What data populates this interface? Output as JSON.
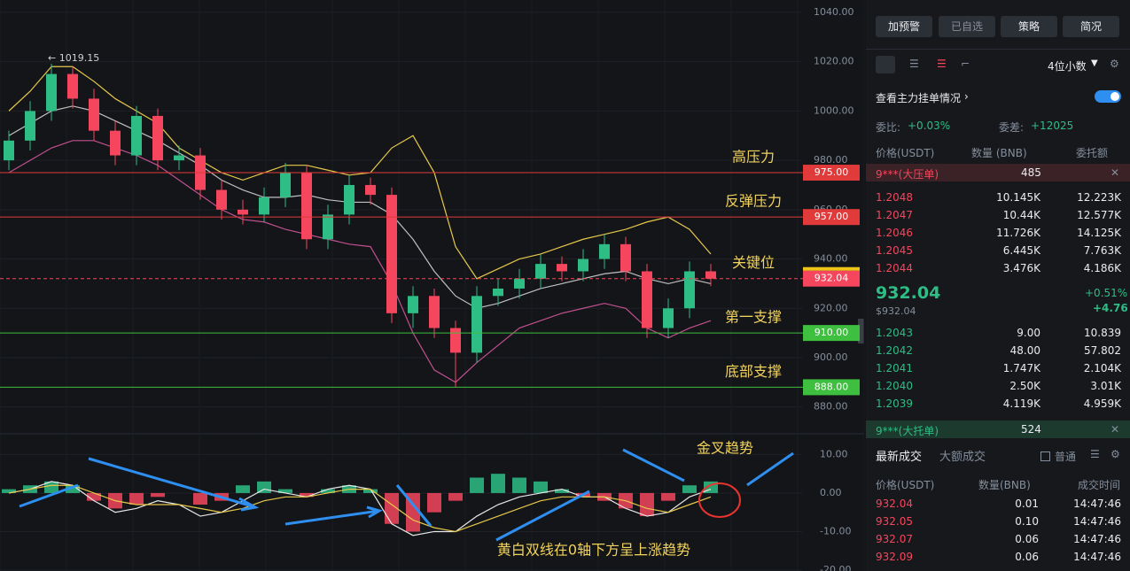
{
  "chart_data": [
    {
      "type": "candlestick",
      "candles": [
        [
          980,
          992,
          976,
          988
        ],
        [
          988,
          1004,
          984,
          1000
        ],
        [
          1000,
          1019.15,
          996,
          1015
        ],
        [
          1015,
          1018,
          1001,
          1005
        ],
        [
          1005,
          1009,
          988,
          992
        ],
        [
          992,
          996,
          978,
          982
        ],
        [
          982,
          1002,
          978,
          998
        ],
        [
          998,
          1001,
          976,
          980
        ],
        [
          980,
          986,
          976,
          982
        ],
        [
          982,
          985,
          964,
          968
        ],
        [
          968,
          972,
          956,
          960
        ],
        [
          960,
          964,
          954,
          958
        ],
        [
          958,
          969,
          955,
          965
        ],
        [
          965,
          979,
          961,
          975
        ],
        [
          975,
          978,
          944,
          948
        ],
        [
          948,
          962,
          944,
          958
        ],
        [
          958,
          974,
          954,
          970
        ],
        [
          970,
          973,
          962,
          966
        ],
        [
          966,
          969,
          914,
          918
        ],
        [
          918,
          929,
          912,
          925
        ],
        [
          925,
          928,
          908,
          912
        ],
        [
          912,
          915,
          888,
          902
        ],
        [
          902,
          929,
          898,
          925
        ],
        [
          925,
          932,
          921,
          928
        ],
        [
          928,
          936,
          924,
          932
        ],
        [
          932,
          942,
          928,
          938
        ],
        [
          938,
          941,
          931,
          935
        ],
        [
          935,
          944,
          931,
          940
        ],
        [
          940,
          950,
          936,
          946
        ],
        [
          946,
          949,
          931,
          935
        ],
        [
          935,
          938,
          908,
          912
        ],
        [
          912,
          924,
          908,
          920
        ],
        [
          920,
          939,
          916,
          935
        ],
        [
          935,
          938,
          929,
          932
        ]
      ],
      "up_color": "#2ebd85",
      "down_color": "#f6465d",
      "bands": [
        {
          "color": "#e6c84a",
          "values": [
            1000,
            1008,
            1018,
            1018,
            1012,
            1005,
            1000,
            995,
            985,
            980,
            975,
            972,
            975,
            978,
            978,
            976,
            974,
            975,
            985,
            990,
            975,
            945,
            932,
            936,
            940,
            942,
            945,
            948,
            950,
            952,
            955,
            957,
            952,
            942
          ]
        },
        {
          "color": "#bfbfbf",
          "values": [
            990,
            995,
            1000,
            1002,
            1000,
            996,
            992,
            988,
            983,
            978,
            972,
            968,
            965,
            965,
            966,
            964,
            963,
            963,
            958,
            948,
            935,
            925,
            920,
            922,
            925,
            928,
            930,
            932,
            934,
            935,
            932,
            930,
            932,
            930
          ]
        },
        {
          "color": "#c2508f",
          "values": [
            975,
            980,
            985,
            988,
            988,
            985,
            982,
            978,
            972,
            966,
            960,
            956,
            955,
            952,
            950,
            948,
            946,
            945,
            930,
            910,
            895,
            890,
            898,
            905,
            912,
            915,
            918,
            920,
            922,
            920,
            912,
            908,
            912,
            915
          ]
        }
      ],
      "high_label": "← 1019.15",
      "high_index": 2,
      "ylim": [
        872,
        1045
      ],
      "yticks": [
        {
          "value": 1040,
          "label": "1040.00"
        },
        {
          "value": 1020,
          "label": "1020.00"
        },
        {
          "value": 1000,
          "label": "1000.00"
        },
        {
          "value": 980,
          "label": "980.00"
        },
        {
          "value": 960,
          "label": "960.00"
        },
        {
          "value": 940,
          "label": "940.00"
        },
        {
          "value": 920,
          "label": "920.00"
        },
        {
          "value": 900,
          "label": "900.00"
        },
        {
          "value": 880,
          "label": "880.00"
        }
      ],
      "levels": [
        {
          "value": 975,
          "label": "975.00",
          "name": "高压力",
          "color": "#e03a3a"
        },
        {
          "value": 957,
          "label": "957.00",
          "name": "反弹压力",
          "color": "#e03a3a"
        },
        {
          "value": 932.04,
          "label": "932.04",
          "name": "关键位",
          "color": "#f6465d",
          "dashed": true
        },
        {
          "value": 910,
          "label": "910.00",
          "name": "第一支撑",
          "color": "#3fbf3f"
        },
        {
          "value": 888,
          "label": "888.00",
          "name": "底部支撑",
          "color": "#3fbf3f"
        }
      ]
    },
    {
      "type": "macd",
      "values": [
        1,
        2,
        3,
        2,
        -2,
        -4,
        -3,
        -1,
        0,
        -3,
        -2,
        2,
        3,
        1,
        -1,
        1,
        2,
        1,
        -8,
        -10,
        -5,
        -2,
        4,
        5,
        4,
        3,
        1,
        -1,
        -2,
        -4,
        -6,
        -2,
        2,
        3
      ],
      "up_color": "#2ebd85",
      "down_color": "#f6465d",
      "series": [
        {
          "color": "#e8e8e8",
          "values": [
            0,
            1,
            3,
            2,
            -2,
            -5,
            -4,
            -2,
            -3,
            -6,
            -5,
            -2,
            1,
            0,
            -1,
            1,
            2,
            1,
            -8,
            -11,
            -10,
            -10,
            -6,
            -3,
            -1,
            0,
            1,
            -1,
            -1,
            -4,
            -6,
            -5,
            -1,
            1
          ]
        },
        {
          "color": "#e6c84a",
          "values": [
            0,
            1,
            2,
            2,
            0,
            -2,
            -3,
            -3,
            -3,
            -4,
            -5,
            -4,
            -2,
            -1,
            -1,
            0,
            1,
            1,
            -3,
            -7,
            -9,
            -10,
            -8,
            -6,
            -4,
            -2,
            -1,
            -1,
            -1,
            -2,
            -4,
            -5,
            -3,
            -1
          ]
        }
      ],
      "ylim": [
        -20,
        14
      ],
      "yticks": [
        {
          "value": 10,
          "label": "10.00"
        },
        {
          "value": 0,
          "label": "0.00"
        },
        {
          "value": -10,
          "label": "-10.00"
        },
        {
          "value": -20,
          "label": "-20.00"
        }
      ],
      "annotations": [
        "金叉趋势",
        "黄白双线在0轴下方呈上涨趋势"
      ]
    }
  ],
  "toolbar": {
    "buttons": [
      "加预警",
      "已自选",
      "策略",
      "简况"
    ],
    "decimals": "4位小数",
    "main_orders": "查看主力挂单情况"
  },
  "order_book": {
    "ratio_label": "委比:",
    "ratio": "+0.03%",
    "diff_label": "委差:",
    "diff": "+12025",
    "headers": [
      "价格(USDT)",
      "数量 (BNB)",
      "委托额"
    ],
    "big_ask": {
      "label": "9***(大压单)",
      "qty": "485"
    },
    "asks": [
      [
        "1.2048",
        "10.145K",
        "12.223K"
      ],
      [
        "1.2047",
        "10.44K",
        "12.577K"
      ],
      [
        "1.2046",
        "11.726K",
        "14.125K"
      ],
      [
        "1.2045",
        "6.445K",
        "7.763K"
      ],
      [
        "1.2044",
        "3.476K",
        "4.186K"
      ]
    ],
    "last_price": "932.04",
    "last_usd": "$932.04",
    "change_pct": "+0.51%",
    "change": "+4.76",
    "bids": [
      [
        "1.2043",
        "9.00",
        "10.839"
      ],
      [
        "1.2042",
        "48.00",
        "57.802"
      ],
      [
        "1.2041",
        "1.747K",
        "2.104K"
      ],
      [
        "1.2040",
        "2.50K",
        "3.01K"
      ],
      [
        "1.2039",
        "4.119K",
        "4.959K"
      ]
    ],
    "big_bid": {
      "label": "9***(大托单)",
      "qty": "524"
    }
  },
  "trades": {
    "tabs": [
      "最新成交",
      "大额成交"
    ],
    "filter": "普通",
    "headers": [
      "价格(USDT)",
      "数量(BNB)",
      "成交时间"
    ],
    "rows": [
      [
        "932.04",
        "0.01",
        "14:47:46"
      ],
      [
        "932.05",
        "0.10",
        "14:47:46"
      ],
      [
        "932.07",
        "0.06",
        "14:47:46"
      ],
      [
        "932.09",
        "0.06",
        "14:47:46"
      ]
    ]
  }
}
